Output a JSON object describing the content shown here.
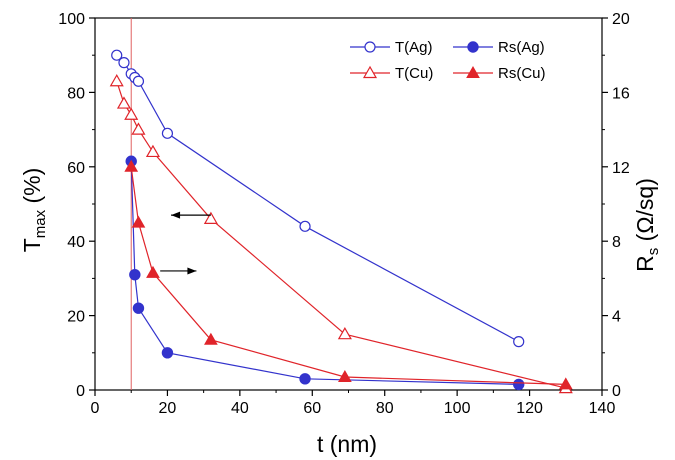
{
  "chart_data": {
    "type": "line",
    "title": "",
    "xlabel": {
      "main": "t (nm)"
    },
    "ylabel_left": {
      "main": "T",
      "sub": "max",
      "tail": " (%)"
    },
    "ylabel_right": {
      "main": "R",
      "sub": "s",
      "tail": " (Ω/sq)"
    },
    "xlim": [
      0,
      140
    ],
    "ylim_left": [
      0,
      100
    ],
    "ylim_right": [
      0,
      20
    ],
    "x_ticks": [
      "0",
      "20",
      "40",
      "60",
      "80",
      "100",
      "120",
      "140"
    ],
    "y_left_ticks": [
      "0",
      "20",
      "40",
      "60",
      "80",
      "100"
    ],
    "y_right_ticks": [
      "0",
      "4",
      "8",
      "12",
      "16",
      "20"
    ],
    "grid": false,
    "legend_position": "top-right",
    "colors": {
      "ag": "#3333cc",
      "cu": "#e0242a",
      "marker_line": "#e06060"
    },
    "series": [
      {
        "name": "T(Ag)",
        "axis": "left",
        "marker": "open-circle",
        "color_key": "ag",
        "x": [
          6,
          8,
          10,
          11,
          12,
          20,
          58,
          117
        ],
        "y": [
          90,
          88,
          85,
          84,
          83,
          69,
          44,
          13
        ]
      },
      {
        "name": "Rs(Ag)",
        "axis": "right",
        "marker": "filled-circle",
        "color_key": "ag",
        "x": [
          10,
          11,
          12,
          20,
          58,
          117
        ],
        "y": [
          12.3,
          6.2,
          4.4,
          2.0,
          0.6,
          0.3
        ]
      },
      {
        "name": "T(Cu)",
        "axis": "left",
        "marker": "open-triangle",
        "color_key": "cu",
        "x": [
          6,
          8,
          10,
          12,
          16,
          32,
          69,
          130
        ],
        "y": [
          83,
          77,
          74,
          70,
          64,
          46,
          15,
          0.5
        ]
      },
      {
        "name": "Rs(Cu)",
        "axis": "right",
        "marker": "filled-triangle",
        "color_key": "cu",
        "x": [
          10,
          12,
          16,
          32,
          69,
          130
        ],
        "y": [
          12.0,
          9.0,
          6.3,
          2.7,
          0.7,
          0.3
        ]
      }
    ],
    "reference_line_x": 10,
    "annotations": [
      {
        "type": "arrow",
        "direction": "left",
        "from": [
          32,
          47
        ],
        "to": [
          21,
          47
        ],
        "axis": "left"
      },
      {
        "type": "arrow",
        "direction": "right",
        "from": [
          18,
          6.4
        ],
        "to": [
          28,
          6.4
        ],
        "axis": "right"
      }
    ]
  }
}
